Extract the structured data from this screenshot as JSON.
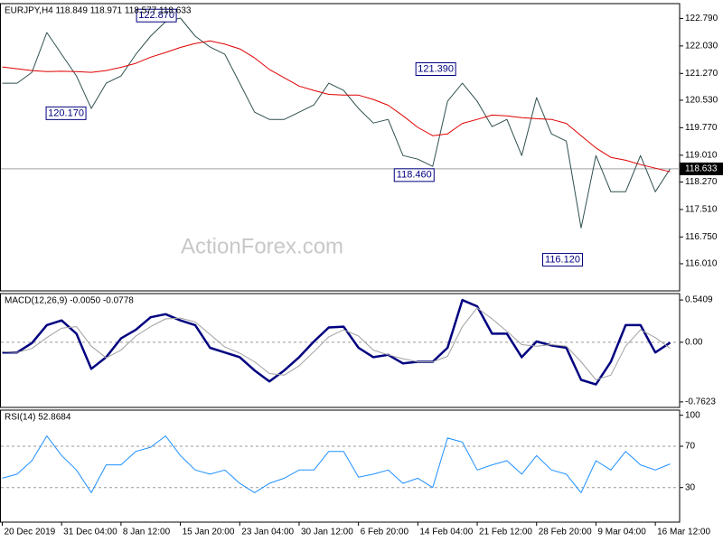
{
  "chart_data": [
    {
      "type": "line",
      "title": "EURJPY,H4  118.849 118.971 118.577 118.633",
      "watermark": "ActionForex.com",
      "x": [
        0,
        11,
        22,
        33,
        44,
        55,
        66,
        77,
        88,
        99,
        110,
        121,
        132,
        143,
        154,
        165,
        176,
        187,
        198,
        209,
        220,
        231,
        242,
        253,
        264,
        275,
        286,
        297,
        308,
        319,
        330,
        341,
        352,
        363,
        374,
        385,
        396,
        407,
        418,
        429,
        440,
        451,
        462,
        473,
        484,
        495
      ],
      "xlim": [
        -1,
        502
      ],
      "ylim": [
        115.26,
        123.2
      ],
      "yticks": [
        {
          "value": 122.79,
          "label": "122.790"
        },
        {
          "value": 122.03,
          "label": "122.030"
        },
        {
          "value": 121.27,
          "label": "121.270"
        },
        {
          "value": 120.53,
          "label": "120.530"
        },
        {
          "value": 119.77,
          "label": "119.770"
        },
        {
          "value": 119.01,
          "label": "119.010"
        },
        {
          "value": 118.27,
          "label": "118.270"
        },
        {
          "value": 117.51,
          "label": "117.510"
        },
        {
          "value": 116.75,
          "label": "116.750"
        },
        {
          "value": 116.01,
          "label": "116.010"
        }
      ],
      "series": [
        {
          "color": "#2f4f4f",
          "values": [
            121.0,
            121.0,
            121.3,
            122.4,
            121.8,
            121.2,
            120.3,
            121.0,
            121.2,
            121.8,
            122.3,
            122.7,
            122.8,
            122.3,
            122.0,
            121.8,
            121.0,
            120.2,
            120.0,
            120.0,
            120.2,
            120.4,
            121.0,
            120.8,
            120.3,
            119.9,
            120.0,
            119.0,
            118.9,
            118.7,
            120.5,
            121.0,
            120.5,
            119.8,
            120.0,
            119.0,
            120.6,
            119.6,
            119.4,
            117.0,
            119.0,
            118.0,
            118.0,
            119.0,
            118.0,
            118.633
          ]
        },
        {
          "color": "#e00000",
          "values": [
            121.45,
            121.4,
            121.35,
            121.32,
            121.33,
            121.32,
            121.3,
            121.35,
            121.44,
            121.55,
            121.72,
            121.85,
            121.99,
            122.1,
            122.17,
            122.08,
            121.95,
            121.7,
            121.38,
            121.15,
            120.92,
            120.8,
            120.69,
            120.67,
            120.67,
            120.55,
            120.39,
            120.1,
            119.78,
            119.55,
            119.6,
            119.89,
            120.0,
            120.12,
            120.1,
            120.05,
            120.02,
            120.0,
            119.89,
            119.55,
            119.21,
            118.95,
            118.87,
            118.75,
            118.65,
            118.55
          ]
        }
      ],
      "annotations": [
        {
          "label": "122.870",
          "value": 122.87,
          "x": 129
        },
        {
          "label": "120.170",
          "value": 120.17,
          "x": 62
        },
        {
          "label": "121.390",
          "value": 121.39,
          "x": 336
        },
        {
          "label": "118.460",
          "value": 118.46,
          "x": 320
        },
        {
          "label": "116.120",
          "value": 116.12,
          "x": 430
        }
      ],
      "last_price": {
        "value": 118.633,
        "label": "118.633"
      }
    },
    {
      "type": "line",
      "title": "MACD(12,26,9) -0.0050 -0.0778",
      "x": [
        0,
        11,
        22,
        33,
        44,
        55,
        66,
        77,
        88,
        99,
        110,
        121,
        132,
        143,
        154,
        165,
        176,
        187,
        198,
        209,
        220,
        231,
        242,
        253,
        264,
        275,
        286,
        297,
        308,
        319,
        330,
        341,
        352,
        363,
        374,
        385,
        396,
        407,
        418,
        429,
        440,
        451,
        462,
        473,
        484,
        495
      ],
      "xlim": [
        -1,
        502
      ],
      "ylim": [
        -0.833,
        0.623
      ],
      "yticks": [
        0.5409,
        {
          "value": 0,
          "label": "0.00"
        },
        -0.7623
      ],
      "reference_lines": [
        0
      ],
      "series": [
        {
          "color": "#000080",
          "width": 2.5,
          "values": [
            -0.13,
            -0.13,
            -0.01,
            0.22,
            0.28,
            0.11,
            -0.34,
            -0.19,
            0.05,
            0.16,
            0.32,
            0.36,
            0.28,
            0.22,
            -0.07,
            -0.13,
            -0.19,
            -0.36,
            -0.5,
            -0.36,
            -0.19,
            0.01,
            0.19,
            0.2,
            -0.07,
            -0.19,
            -0.16,
            -0.27,
            -0.25,
            -0.25,
            -0.07,
            0.54,
            0.46,
            0.11,
            0.11,
            -0.19,
            0.01,
            -0.04,
            -0.07,
            -0.48,
            -0.54,
            -0.25,
            0.22,
            0.22,
            -0.13,
            -0.005
          ]
        },
        {
          "color": "#a0a0a0",
          "width": 1,
          "values": [
            -0.12,
            -0.13,
            -0.08,
            0.06,
            0.18,
            0.2,
            -0.05,
            -0.2,
            -0.1,
            0.08,
            0.2,
            0.3,
            0.31,
            0.26,
            0.1,
            -0.06,
            -0.14,
            -0.25,
            -0.4,
            -0.42,
            -0.3,
            -0.12,
            0.07,
            0.16,
            0.08,
            -0.1,
            -0.16,
            -0.21,
            -0.25,
            -0.25,
            -0.18,
            0.2,
            0.44,
            0.3,
            0.14,
            -0.03,
            -0.05,
            -0.03,
            -0.05,
            -0.25,
            -0.48,
            -0.42,
            -0.05,
            0.16,
            0.06,
            -0.0778
          ]
        }
      ]
    },
    {
      "type": "line",
      "title": "RSI(14) 52.8684",
      "x": [
        0,
        11,
        22,
        33,
        44,
        55,
        66,
        77,
        88,
        99,
        110,
        121,
        132,
        143,
        154,
        165,
        176,
        187,
        198,
        209,
        220,
        231,
        242,
        253,
        264,
        275,
        286,
        297,
        308,
        319,
        330,
        341,
        352,
        363,
        374,
        385,
        396,
        407,
        418,
        429,
        440,
        451,
        462,
        473,
        484,
        495
      ],
      "xlim": [
        -1,
        502
      ],
      "ylim": [
        -3.5,
        105
      ],
      "yticks": [
        100,
        70,
        30
      ],
      "reference_lines": [
        70,
        30
      ],
      "series": [
        {
          "color": "#1e90ff",
          "width": 1,
          "values": [
            39,
            43,
            56,
            80,
            61,
            47,
            25,
            52,
            52,
            65,
            69,
            80,
            61,
            47,
            43,
            47,
            34,
            25,
            34,
            39,
            47,
            47,
            65,
            65,
            40,
            43,
            47,
            34,
            39,
            30,
            78,
            74,
            47,
            52,
            56,
            43,
            61,
            47,
            43,
            25,
            56,
            47,
            65,
            52,
            47,
            52.8684
          ]
        }
      ],
      "xticks": [
        {
          "value": 0,
          "label": "20 Dec 2019"
        },
        {
          "value": 44,
          "label": "31 Dec 04:00"
        },
        {
          "value": 88,
          "label": "8 Jan 12:00"
        },
        {
          "value": 132,
          "label": "15 Jan 20:00"
        },
        {
          "value": 176,
          "label": "23 Jan 04:00"
        },
        {
          "value": 220,
          "label": "30 Jan 12:00"
        },
        {
          "value": 264,
          "label": "6 Feb 20:00"
        },
        {
          "value": 308,
          "label": "14 Feb 04:00"
        },
        {
          "value": 352,
          "label": "21 Feb 12:00"
        },
        {
          "value": 396,
          "label": "28 Feb 20:00"
        },
        {
          "value": 440,
          "label": "9 Mar 04:00"
        },
        {
          "value": 484,
          "label": "16 Mar 12:00"
        }
      ]
    }
  ]
}
